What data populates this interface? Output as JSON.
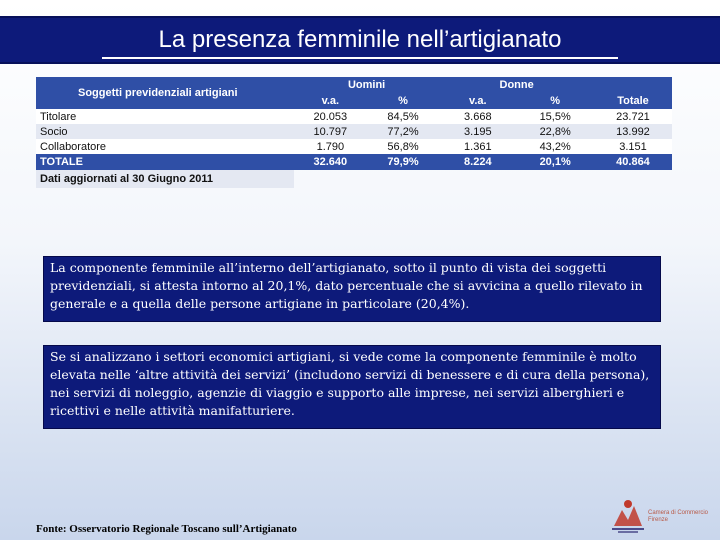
{
  "title": "La presenza femminile nell’artigianato",
  "table": {
    "header_label": "Soggetti previdenziali artigiani",
    "group_uomini": "Uomini",
    "group_donne": "Donne",
    "col_va": "v.a.",
    "col_pct": "%",
    "col_totale": "Totale",
    "rows": [
      {
        "label": "Titolare",
        "u_va": "20.053",
        "u_pct": "84,5%",
        "d_va": "3.668",
        "d_pct": "15,5%",
        "tot": "23.721"
      },
      {
        "label": "Socio",
        "u_va": "10.797",
        "u_pct": "77,2%",
        "d_va": "3.195",
        "d_pct": "22,8%",
        "tot": "13.992"
      },
      {
        "label": "Collaboratore",
        "u_va": "1.790",
        "u_pct": "56,8%",
        "d_va": "1.361",
        "d_pct": "43,2%",
        "tot": "3.151"
      }
    ],
    "total": {
      "label": "TOTALE",
      "u_va": "32.640",
      "u_pct": "79,9%",
      "d_va": "8.224",
      "d_pct": "20,1%",
      "tot": "40.864"
    },
    "note": "Dati aggiornati al 30 Giugno 2011"
  },
  "paragraph1": "La componente femminile all’interno dell’artigianato, sotto il punto di vista dei soggetti previdenziali, si attesta intorno al 20,1%, dato percentuale che si avvicina a quello rilevato in generale e a quella delle persone artigiane in particolare (20,4%).",
  "paragraph2": "Se si analizzano i settori economici artigiani, si vede come la componente femminile è molto elevata nelle ‘altre attività dei servizi’ (includono servizi di benessere e di cura della persona), nei servizi di noleggio, agenzie di viaggio e supporto alle imprese, nei servizi alberghieri e ricettivi e nelle attività manifatturiere.",
  "footer": "Fonte: Osservatorio Regionale Toscano sull’Artigianato",
  "logo": {
    "icon": "chamber-logo-icon",
    "line1": "Camera di Commercio",
    "line2": "Firenze"
  },
  "colors": {
    "title_bg": "#0d1a7a",
    "table_header": "#2f4fa6",
    "row_alt": "#e4e8f2"
  }
}
